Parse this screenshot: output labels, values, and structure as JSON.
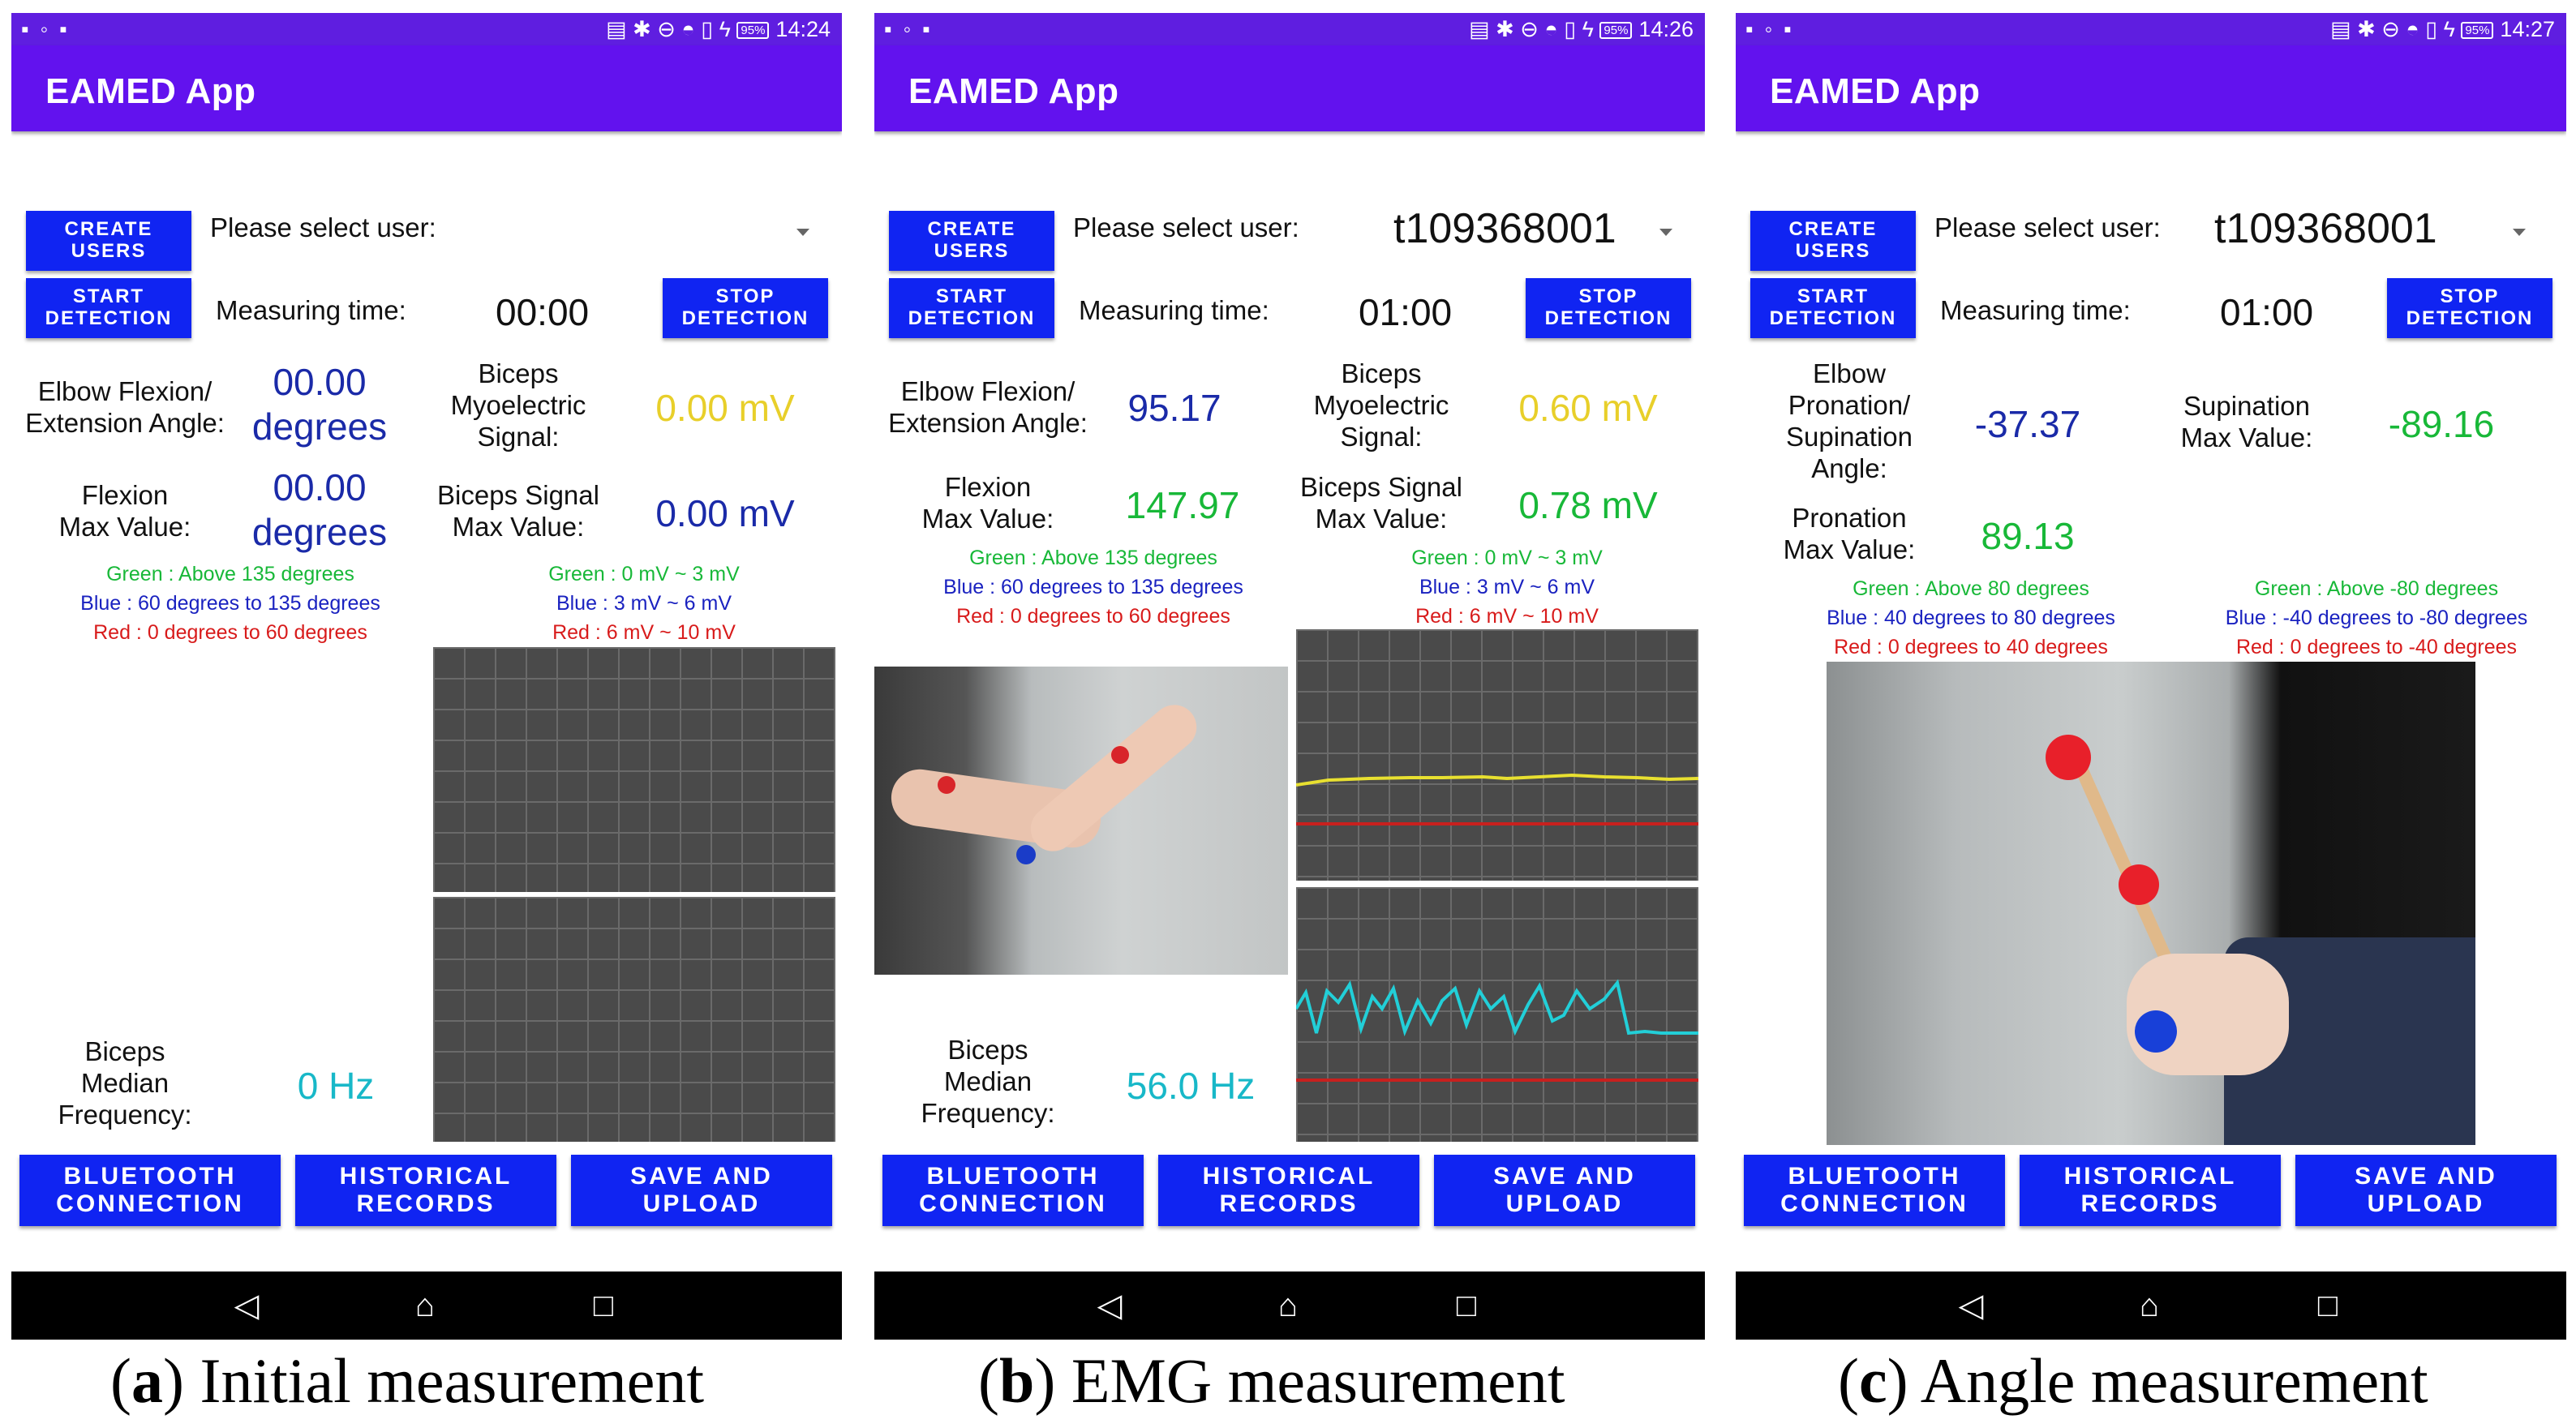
{
  "status": {
    "time_a": "14:24",
    "time_b": "14:26",
    "time_c": "14:27",
    "battery": "95%"
  },
  "app": {
    "title": "EAMED App"
  },
  "buttons": {
    "create_users": "CREATE\nUSERS",
    "start_detection": "START\nDETECTION",
    "stop_detection": "STOP\nDETECTION",
    "bluetooth": "BLUETOOTH\nCONNECTION",
    "historical": "HISTORICAL\nRECORDS",
    "save_upload": "SAVE AND\nUPLOAD"
  },
  "labels": {
    "select_user": "Please select user:",
    "measuring_time": "Measuring time:",
    "elbow_angle": "Elbow Flexion/\nExtension Angle:",
    "biceps_signal": "Biceps\nMyoelectric\nSignal:",
    "flexion_max": "Flexion\nMax Value:",
    "biceps_max": "Biceps Signal\nMax Value:",
    "median_freq": "Biceps\nMedian\nFrequency:",
    "pronation_angle": "Elbow\nPronation/\nSupination\nAngle:",
    "supination_max": "Supination\nMax Value:",
    "pronation_max": "Pronation\nMax Value:"
  },
  "legends": {
    "flex": {
      "green": "Green : Above 135 degrees",
      "blue": "Blue : 60 degrees to 135 degrees",
      "red": "Red : 0 degrees to 60 degrees"
    },
    "emg": {
      "green": "Green : 0 mV ~ 3 mV",
      "blue": "Blue : 3 mV ~ 6 mV",
      "red": "Red : 6 mV ~ 10 mV"
    },
    "pron": {
      "green": "Green : Above 80 degrees",
      "blue": "Blue : 40 degrees to 80 degrees",
      "red": "Red : 0 degrees to 40 degrees"
    },
    "sup": {
      "green": "Green : Above -80 degrees",
      "blue": "Blue : -40 degrees to -80 degrees",
      "red": "Red : 0 degrees to -40 degrees"
    }
  },
  "screen_a": {
    "time": "00:00",
    "angle": "00.00\ndegrees",
    "signal": "0.00 mV",
    "flex_max": "00.00\ndegrees",
    "signal_max": "0.00 mV",
    "freq": "0 Hz"
  },
  "screen_b": {
    "user": "t109368001",
    "time": "01:00",
    "angle": "95.17",
    "signal": "0.60 mV",
    "flex_max": "147.97",
    "signal_max": "0.78 mV",
    "freq": "56.0 Hz"
  },
  "screen_c": {
    "user": "t109368001",
    "time": "01:00",
    "angle": "-37.37",
    "sup_max": "-89.16",
    "pron_max": "89.13"
  },
  "captions": {
    "a_letter": "a",
    "a_text": " Initial measurement",
    "b_letter": "b",
    "b_text": " EMG measurement",
    "c_letter": "c",
    "c_text": " Angle measurement"
  },
  "colors": {
    "appbar": "#6212ee",
    "button": "#1024f2",
    "blue_value": "#1a2aa8",
    "green_value": "#18b838",
    "yellow_value": "#e8cf2a",
    "cyan_value": "#18b8c8"
  }
}
